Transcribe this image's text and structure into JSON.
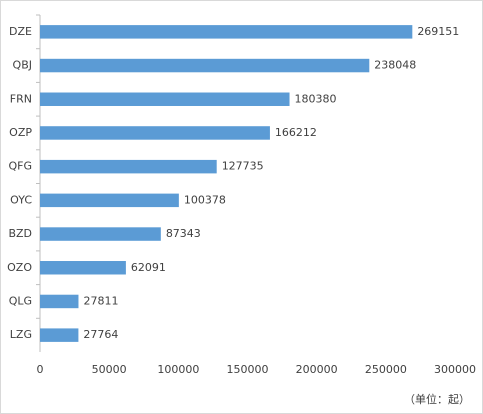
{
  "chart_data": {
    "type": "bar",
    "orientation": "horizontal",
    "categories": [
      "DZE",
      "QBJ",
      "FRN",
      "OZP",
      "QFG",
      "OYC",
      "BZD",
      "OZO",
      "QLG",
      "LZG"
    ],
    "values": [
      269151,
      238048,
      180380,
      166212,
      127735,
      100378,
      87343,
      62091,
      27811,
      27764
    ],
    "color": "#5b9bd5",
    "xlim": [
      0,
      300000
    ],
    "xticks": [
      0,
      50000,
      100000,
      150000,
      200000,
      250000,
      300000
    ],
    "grid": false,
    "note": "（单位：起）"
  }
}
